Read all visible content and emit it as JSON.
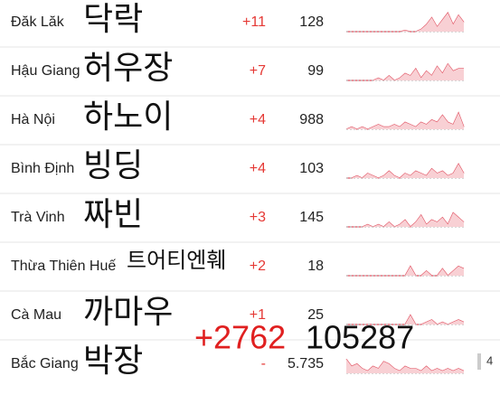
{
  "rows": [
    {
      "name": "Đăk Lăk",
      "korean": "닥락",
      "delta": "+11",
      "total": "128",
      "trend": [
        0,
        0,
        0,
        0,
        0,
        0,
        0,
        0,
        0,
        0,
        0,
        0.5,
        0,
        0,
        1,
        3,
        6,
        2,
        5,
        8,
        3,
        7,
        4
      ]
    },
    {
      "name": "Hậu Giang",
      "korean": "허우장",
      "delta": "+7",
      "total": "99",
      "trend": [
        0,
        0,
        0,
        0,
        0,
        0,
        1,
        0,
        2,
        0,
        1,
        3,
        2,
        5,
        1,
        4,
        2,
        6,
        3,
        7,
        4,
        5,
        5
      ]
    },
    {
      "name": "Hà Nội",
      "korean": "하노이",
      "delta": "+4",
      "total": "988",
      "trend": [
        0,
        1,
        0,
        1,
        0,
        1,
        2,
        1,
        1,
        2,
        1,
        3,
        2,
        1,
        3,
        2,
        4,
        3,
        6,
        3,
        2,
        7,
        1
      ]
    },
    {
      "name": "Bình Định",
      "korean": "빙딩",
      "delta": "+4",
      "total": "103",
      "trend": [
        0,
        0,
        1,
        0,
        2,
        1,
        0,
        1,
        3,
        1,
        0,
        2,
        1,
        3,
        2,
        1,
        4,
        2,
        3,
        1,
        2,
        6,
        2
      ]
    },
    {
      "name": "Trà Vinh",
      "korean": "짜빈",
      "delta": "+3",
      "total": "145",
      "trend": [
        0,
        0,
        0,
        0,
        1,
        0,
        1,
        0,
        2,
        0,
        1,
        3,
        0,
        2,
        5,
        1,
        3,
        2,
        4,
        1,
        6,
        4,
        2
      ]
    },
    {
      "name": "Thừa Thiên Huế",
      "korean": "트어티엔훼",
      "delta": "+2",
      "total": "18",
      "trend": [
        0,
        0,
        0,
        0,
        0,
        0,
        0,
        0,
        0,
        0,
        0,
        0,
        4,
        0,
        0,
        2,
        0,
        0,
        3,
        0,
        2,
        4,
        3
      ]
    },
    {
      "name": "Cà Mau",
      "korean": "까마우",
      "delta": "+1",
      "total": "25",
      "trend": [
        0,
        0,
        0,
        0,
        0,
        0,
        0,
        0,
        0,
        0,
        0,
        0,
        4,
        0,
        0,
        1,
        2,
        0,
        1,
        0,
        1,
        2,
        1
      ]
    },
    {
      "name": "Bắc Giang",
      "korean": "박장",
      "delta": "-",
      "total": "5.735",
      "trend": [
        6,
        3,
        4,
        2,
        1,
        3,
        2,
        5,
        4,
        2,
        1,
        3,
        2,
        2,
        1,
        3,
        1,
        2,
        1,
        2,
        1,
        2,
        1
      ]
    }
  ],
  "overlay": {
    "delta": "+2762",
    "total": "105287"
  },
  "page": "4"
}
